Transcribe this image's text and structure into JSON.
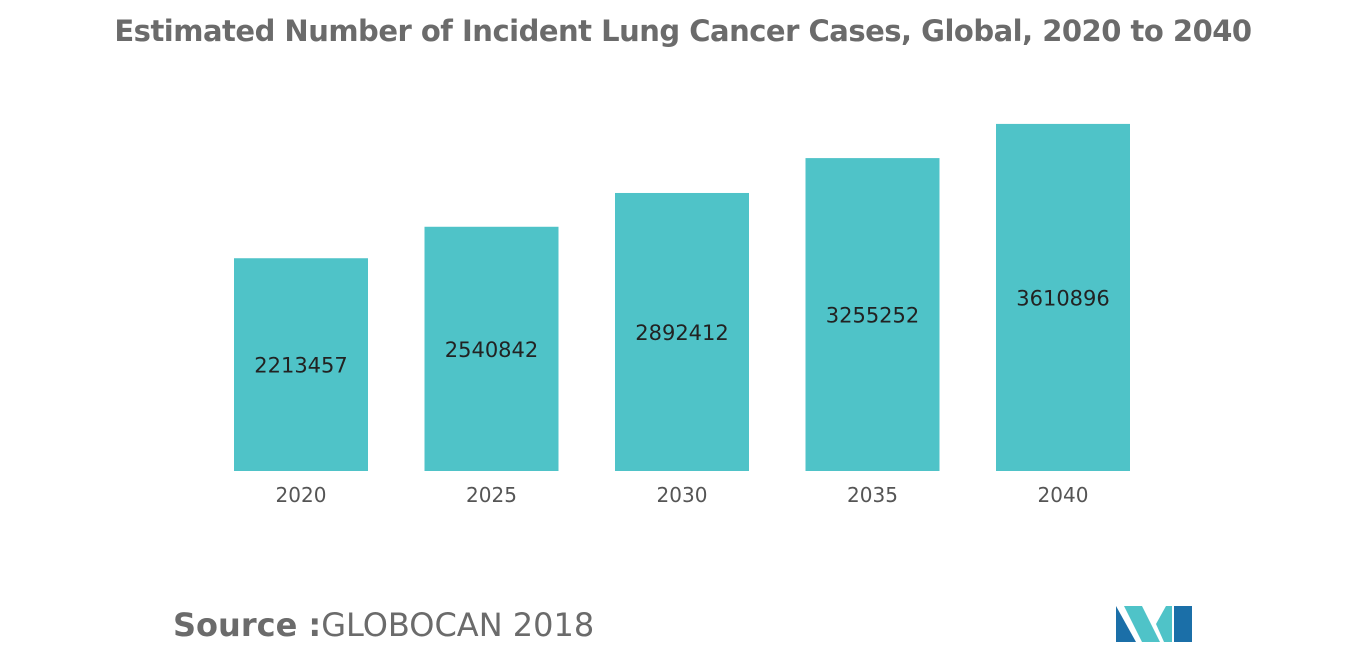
{
  "chart_data": {
    "type": "bar",
    "title": "Estimated Number of Incident Lung Cancer Cases, Global, 2020 to 2040",
    "categories": [
      "2020",
      "2025",
      "2030",
      "2035",
      "2040"
    ],
    "values": [
      2213457,
      2540842,
      2892412,
      3255252,
      3610896
    ],
    "data_labels": [
      "2213457",
      "2540842",
      "2892412",
      "3255252",
      "3610896"
    ],
    "xlabel": "",
    "ylabel": "",
    "ylim": [
      0,
      4900000
    ],
    "grid": false,
    "legend": "none",
    "bar_color": "#4fc3c8"
  },
  "source": {
    "label": "Source :",
    "value": "GLOBOCAN 2018"
  },
  "colors": {
    "title": "#6b6b6b",
    "axis_text": "#555555",
    "data_label": "#222222",
    "logo_dark": "#1b6fa8",
    "logo_light": "#4fc3c8"
  },
  "logo_icon": "mordor-intelligence-logo-icon"
}
